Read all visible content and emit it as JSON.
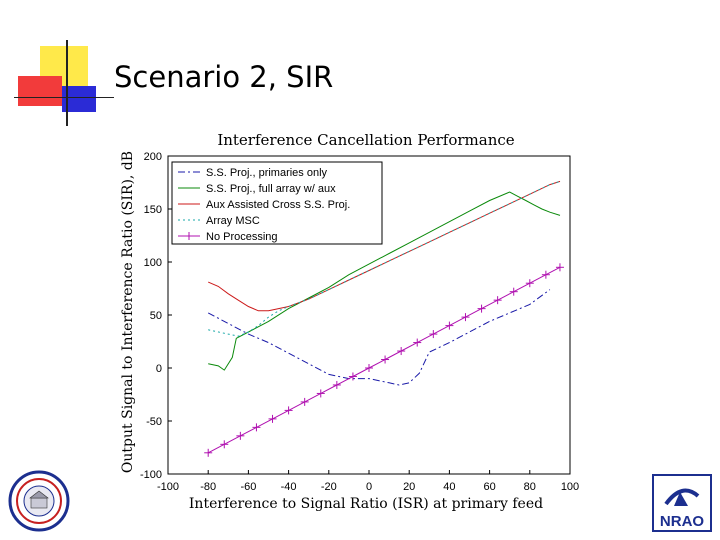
{
  "slide": {
    "title": "Scenario 2, SIR",
    "logo_left_icon": "university-seal-icon",
    "logo_right_icon": "nrao-logo-icon",
    "logo_right_text": "NRAO"
  },
  "colors": {
    "deco_yellow": "#ffe94a",
    "deco_red": "#f23b3b",
    "deco_blue": "#2b2bd6",
    "nrao_blue": "#1c2f8f"
  },
  "chart_data": {
    "type": "line",
    "title": "Interference Cancellation Performance",
    "xlabel": "Interference to Signal Ratio (ISR) at primary feed",
    "ylabel": "Output Signal to Interference Ratio (SIR), dB",
    "xlim": [
      -100,
      100
    ],
    "ylim": [
      -100,
      200
    ],
    "xticks": [
      -100,
      -80,
      -60,
      -40,
      -20,
      0,
      20,
      40,
      60,
      80,
      100
    ],
    "yticks": [
      -100,
      -50,
      0,
      50,
      100,
      150,
      200
    ],
    "xtick_labels": [
      "-100",
      "-80",
      "-60",
      "-40",
      "-20",
      "0",
      "20",
      "40",
      "60",
      "80",
      "100"
    ],
    "ytick_labels": [
      "-100",
      "-50",
      "0",
      "50",
      "100",
      "150",
      "200"
    ],
    "grid": false,
    "legend_position": "top-left",
    "series": [
      {
        "name": "S.S. Proj., primaries only",
        "color": "#1a1aa8",
        "style": "dashdot",
        "x": [
          -80,
          -70,
          -60,
          -50,
          -40,
          -30,
          -20,
          -10,
          0,
          10,
          15,
          20,
          25,
          30,
          40,
          50,
          60,
          70,
          80,
          90
        ],
        "y": [
          52,
          42,
          32,
          24,
          14,
          4,
          -6,
          -10,
          -10,
          -14,
          -16,
          -14,
          -5,
          15,
          24,
          34,
          44,
          52,
          60,
          74
        ]
      },
      {
        "name": "S.S. Proj., full array w/ aux",
        "color": "#0b8a0b",
        "style": "solid",
        "x": [
          -80,
          -75,
          -72,
          -68,
          -66,
          -60,
          -50,
          -40,
          -30,
          -20,
          -10,
          0,
          10,
          20,
          30,
          40,
          50,
          60,
          70,
          74,
          78,
          82,
          86,
          90,
          95
        ],
        "y": [
          4,
          2,
          -2,
          10,
          28,
          34,
          44,
          56,
          66,
          76,
          88,
          98,
          108,
          118,
          128,
          138,
          148,
          158,
          166,
          162,
          158,
          154,
          150,
          147,
          144
        ]
      },
      {
        "name": "Aux Assisted Cross S.S. Proj.",
        "color": "#cc1a1a",
        "style": "solid",
        "x": [
          -80,
          -75,
          -70,
          -65,
          -60,
          -55,
          -50,
          -45,
          -40,
          -30,
          -20,
          -10,
          0,
          10,
          20,
          30,
          40,
          50,
          60,
          70,
          80,
          90,
          95
        ],
        "y": [
          81,
          77,
          70,
          64,
          58,
          54,
          54,
          56,
          58,
          65,
          74,
          83,
          92,
          101,
          110,
          119,
          128,
          137,
          146,
          155,
          164,
          173,
          176
        ]
      },
      {
        "name": "Array MSC",
        "color": "#1aa8a8",
        "style": "dotted",
        "x": [
          -80,
          -70,
          -65,
          -60,
          -55,
          -50,
          -45,
          -40,
          -30,
          -20,
          -10,
          0,
          10,
          20,
          30,
          40,
          50,
          60,
          70,
          80,
          90,
          95
        ],
        "y": [
          36,
          32,
          30,
          34,
          40,
          48,
          54,
          58,
          65,
          74,
          83,
          92,
          101,
          110,
          119,
          128,
          137,
          146,
          155,
          164,
          173,
          176
        ]
      },
      {
        "name": "No Processing",
        "color": "#b011b0",
        "style": "solid-plus",
        "x": [
          -80,
          -72,
          -64,
          -56,
          -48,
          -40,
          -32,
          -24,
          -16,
          -8,
          0,
          8,
          16,
          24,
          32,
          40,
          48,
          56,
          64,
          72,
          80,
          88,
          95
        ],
        "y": [
          -80,
          -72,
          -64,
          -56,
          -48,
          -40,
          -32,
          -24,
          -16,
          -8,
          0,
          8,
          16,
          24,
          32,
          40,
          48,
          56,
          64,
          72,
          80,
          88,
          95
        ]
      }
    ]
  }
}
